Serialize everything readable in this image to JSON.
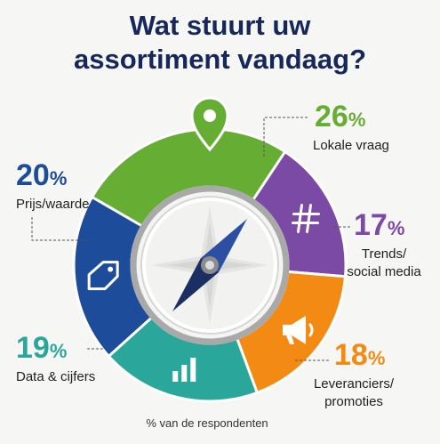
{
  "title_lines": [
    "Wat stuurt uw",
    "assortiment vandaag?"
  ],
  "footnote": "% van de respondenten",
  "chart_data": {
    "type": "pie",
    "title": "Wat stuurt uw assortiment vandaag?",
    "unit": "%",
    "categories": [
      "Lokale vraag",
      "Trends/ social media",
      "Leveranciers/ promoties",
      "Data & cijfers",
      "Prijs/waarde"
    ],
    "values": [
      26,
      17,
      18,
      19,
      20
    ],
    "series": [
      {
        "label_lines": [
          "Lokale vraag"
        ],
        "value": 26,
        "color": "#66ad34",
        "icon": "map-pin-icon"
      },
      {
        "label_lines": [
          "Trends/",
          "social media"
        ],
        "value": 17,
        "color": "#7a4aa4",
        "icon": "hashtag-icon"
      },
      {
        "label_lines": [
          "Leveranciers/",
          "promoties"
        ],
        "value": 18,
        "color": "#f28a14",
        "icon": "megaphone-icon"
      },
      {
        "label_lines": [
          "Data & cijfers"
        ],
        "value": 19,
        "color": "#2ba69a",
        "icon": "bar-chart-icon"
      },
      {
        "label_lines": [
          "Prijs/waarde"
        ],
        "value": 20,
        "color": "#1c4c9a",
        "icon": "price-tag-icon"
      }
    ]
  }
}
